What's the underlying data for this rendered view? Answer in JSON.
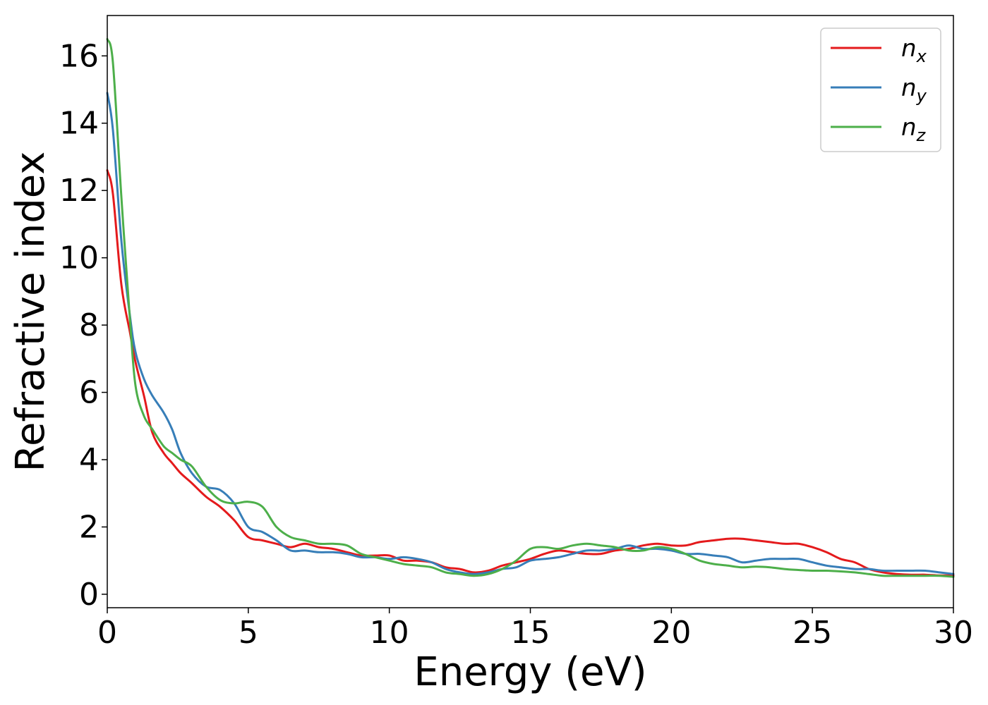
{
  "chart_data": {
    "type": "line",
    "title": "",
    "xlabel": "Energy (eV)",
    "ylabel": "Refractive index",
    "xlim": [
      0,
      30
    ],
    "ylim": [
      -0.4,
      17.2
    ],
    "xticks": [
      0,
      5,
      10,
      15,
      20,
      25,
      30
    ],
    "yticks": [
      0,
      2,
      4,
      6,
      8,
      10,
      12,
      14,
      16
    ],
    "grid": false,
    "legend_position": "top-right",
    "series": [
      {
        "name": "n_x",
        "label_base": "n",
        "label_sub": "x",
        "color": "#e41a1c",
        "x": [
          0,
          0.2,
          0.5,
          0.8,
          1.0,
          1.3,
          1.6,
          2.0,
          2.3,
          2.6,
          3.0,
          3.5,
          4.0,
          4.5,
          5.0,
          5.5,
          6.0,
          6.5,
          7.0,
          7.5,
          8.0,
          8.5,
          9.0,
          9.5,
          10.0,
          10.5,
          11.0,
          11.5,
          12.0,
          12.5,
          13.0,
          13.5,
          14.0,
          14.5,
          15.0,
          15.5,
          16.0,
          16.5,
          17.0,
          17.5,
          18.0,
          18.5,
          19.0,
          19.5,
          20.0,
          20.5,
          21.0,
          21.5,
          22.0,
          22.5,
          23.0,
          23.5,
          24.0,
          24.5,
          25.0,
          25.5,
          26.0,
          26.5,
          27.0,
          27.5,
          28.0,
          28.5,
          29.0,
          29.5,
          30.0
        ],
        "y": [
          12.6,
          11.9,
          9.2,
          7.8,
          6.9,
          5.9,
          4.8,
          4.2,
          3.9,
          3.6,
          3.3,
          2.9,
          2.6,
          2.2,
          1.7,
          1.6,
          1.5,
          1.4,
          1.5,
          1.4,
          1.35,
          1.25,
          1.15,
          1.15,
          1.15,
          1.0,
          1.0,
          0.95,
          0.8,
          0.75,
          0.65,
          0.7,
          0.85,
          0.95,
          1.05,
          1.2,
          1.3,
          1.25,
          1.2,
          1.2,
          1.3,
          1.35,
          1.45,
          1.5,
          1.45,
          1.45,
          1.55,
          1.6,
          1.65,
          1.65,
          1.6,
          1.55,
          1.5,
          1.5,
          1.4,
          1.25,
          1.05,
          0.95,
          0.75,
          0.65,
          0.6,
          0.58,
          0.58,
          0.56,
          0.56
        ]
      },
      {
        "name": "n_y",
        "label_base": "n",
        "label_sub": "y",
        "color": "#377eb8",
        "x": [
          0,
          0.2,
          0.5,
          0.8,
          1.0,
          1.3,
          1.6,
          2.0,
          2.3,
          2.6,
          3.0,
          3.5,
          4.0,
          4.5,
          5.0,
          5.5,
          6.0,
          6.5,
          7.0,
          7.5,
          8.0,
          8.5,
          9.0,
          9.5,
          10.0,
          10.5,
          11.0,
          11.5,
          12.0,
          12.5,
          13.0,
          13.5,
          14.0,
          14.5,
          15.0,
          15.5,
          16.0,
          16.5,
          17.0,
          17.5,
          18.0,
          18.5,
          19.0,
          19.5,
          20.0,
          20.5,
          21.0,
          21.5,
          22.0,
          22.5,
          23.0,
          23.5,
          24.0,
          24.5,
          25.0,
          25.5,
          26.0,
          26.5,
          27.0,
          27.5,
          28.0,
          28.5,
          29.0,
          29.5,
          30.0
        ],
        "y": [
          14.9,
          13.8,
          10.5,
          8.3,
          7.2,
          6.4,
          5.9,
          5.4,
          4.9,
          4.2,
          3.6,
          3.2,
          3.1,
          2.7,
          2.0,
          1.85,
          1.6,
          1.3,
          1.3,
          1.25,
          1.25,
          1.2,
          1.1,
          1.1,
          1.05,
          1.1,
          1.05,
          0.95,
          0.75,
          0.65,
          0.6,
          0.65,
          0.75,
          0.8,
          1.0,
          1.05,
          1.1,
          1.2,
          1.3,
          1.3,
          1.35,
          1.45,
          1.35,
          1.35,
          1.3,
          1.2,
          1.2,
          1.15,
          1.1,
          0.95,
          1.0,
          1.05,
          1.05,
          1.05,
          0.95,
          0.85,
          0.8,
          0.75,
          0.75,
          0.7,
          0.7,
          0.7,
          0.7,
          0.65,
          0.6
        ]
      },
      {
        "name": "n_z",
        "label_base": "n",
        "label_sub": "z",
        "color": "#4daf4a",
        "x": [
          0,
          0.2,
          0.5,
          0.8,
          1.0,
          1.3,
          1.6,
          2.0,
          2.3,
          2.6,
          3.0,
          3.5,
          4.0,
          4.5,
          5.0,
          5.5,
          6.0,
          6.5,
          7.0,
          7.5,
          8.0,
          8.5,
          9.0,
          9.5,
          10.0,
          10.5,
          11.0,
          11.5,
          12.0,
          12.5,
          13.0,
          13.5,
          14.0,
          14.5,
          15.0,
          15.5,
          16.0,
          16.5,
          17.0,
          17.5,
          18.0,
          18.5,
          19.0,
          19.5,
          20.0,
          20.5,
          21.0,
          21.5,
          22.0,
          22.5,
          23.0,
          23.5,
          24.0,
          24.5,
          25.0,
          25.5,
          26.0,
          26.5,
          27.0,
          27.5,
          28.0,
          28.5,
          29.0,
          29.5,
          30.0
        ],
        "y": [
          16.5,
          15.8,
          11.8,
          8.2,
          6.2,
          5.3,
          4.9,
          4.4,
          4.2,
          4.0,
          3.8,
          3.2,
          2.8,
          2.7,
          2.75,
          2.6,
          2.0,
          1.7,
          1.6,
          1.5,
          1.5,
          1.45,
          1.2,
          1.1,
          1.0,
          0.9,
          0.85,
          0.8,
          0.65,
          0.6,
          0.55,
          0.6,
          0.75,
          1.0,
          1.35,
          1.4,
          1.35,
          1.45,
          1.5,
          1.45,
          1.4,
          1.3,
          1.3,
          1.4,
          1.35,
          1.2,
          1.0,
          0.9,
          0.85,
          0.8,
          0.82,
          0.8,
          0.75,
          0.72,
          0.7,
          0.7,
          0.68,
          0.65,
          0.6,
          0.55,
          0.55,
          0.55,
          0.55,
          0.55,
          0.52
        ]
      }
    ]
  }
}
